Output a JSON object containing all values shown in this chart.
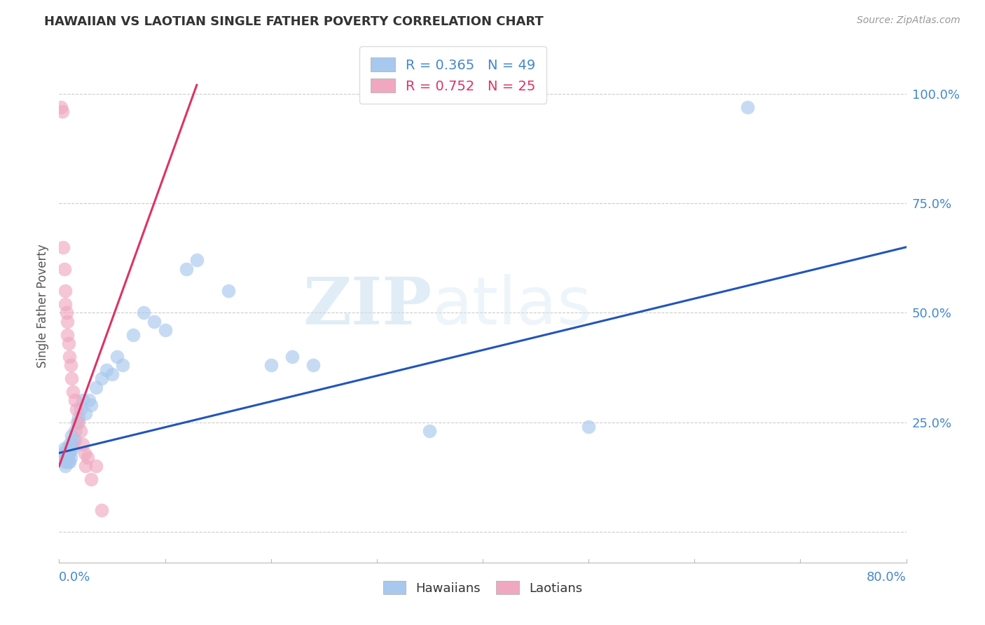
{
  "title": "HAWAIIAN VS LAOTIAN SINGLE FATHER POVERTY CORRELATION CHART",
  "source": "Source: ZipAtlas.com",
  "ylabel": "Single Father Poverty",
  "ytick_values": [
    0.0,
    0.25,
    0.5,
    0.75,
    1.0
  ],
  "ytick_labels": [
    "",
    "25.0%",
    "50.0%",
    "75.0%",
    "100.0%"
  ],
  "xlim": [
    0.0,
    0.8
  ],
  "ylim": [
    -0.07,
    1.1
  ],
  "x_axis_left_label": "0.0%",
  "x_axis_right_label": "80.0%",
  "hawaiian_R": 0.365,
  "hawaiian_N": 49,
  "laotian_R": 0.752,
  "laotian_N": 25,
  "hawaiian_color": "#a8c8ee",
  "laotian_color": "#f0a8c0",
  "hawaiian_line_color": "#2255bb",
  "laotian_line_color": "#dd3366",
  "legend_label_1": "Hawaiians",
  "legend_label_2": "Laotians",
  "watermark_zip": "ZIP",
  "watermark_atlas": "atlas",
  "hawaiian_x": [
    0.003,
    0.004,
    0.005,
    0.005,
    0.006,
    0.006,
    0.007,
    0.007,
    0.008,
    0.008,
    0.009,
    0.009,
    0.01,
    0.01,
    0.01,
    0.011,
    0.011,
    0.012,
    0.012,
    0.013,
    0.013,
    0.015,
    0.015,
    0.017,
    0.018,
    0.02,
    0.022,
    0.025,
    0.028,
    0.03,
    0.035,
    0.04,
    0.045,
    0.05,
    0.055,
    0.06,
    0.07,
    0.08,
    0.09,
    0.1,
    0.12,
    0.13,
    0.16,
    0.2,
    0.22,
    0.24,
    0.35,
    0.5,
    0.65
  ],
  "hawaiian_y": [
    0.18,
    0.17,
    0.19,
    0.16,
    0.18,
    0.15,
    0.17,
    0.16,
    0.19,
    0.17,
    0.18,
    0.16,
    0.2,
    0.18,
    0.16,
    0.19,
    0.17,
    0.2,
    0.22,
    0.21,
    0.19,
    0.23,
    0.21,
    0.25,
    0.26,
    0.28,
    0.3,
    0.27,
    0.3,
    0.29,
    0.33,
    0.35,
    0.37,
    0.36,
    0.4,
    0.38,
    0.45,
    0.5,
    0.48,
    0.46,
    0.6,
    0.62,
    0.55,
    0.38,
    0.4,
    0.38,
    0.23,
    0.24,
    0.97
  ],
  "laotian_x": [
    0.002,
    0.003,
    0.004,
    0.005,
    0.006,
    0.006,
    0.007,
    0.008,
    0.008,
    0.009,
    0.01,
    0.011,
    0.012,
    0.013,
    0.015,
    0.016,
    0.018,
    0.02,
    0.022,
    0.024,
    0.025,
    0.027,
    0.03,
    0.035,
    0.04
  ],
  "laotian_y": [
    0.97,
    0.96,
    0.65,
    0.6,
    0.55,
    0.52,
    0.5,
    0.48,
    0.45,
    0.43,
    0.4,
    0.38,
    0.35,
    0.32,
    0.3,
    0.28,
    0.25,
    0.23,
    0.2,
    0.18,
    0.15,
    0.17,
    0.12,
    0.15,
    0.05
  ],
  "blue_line_x": [
    0.0,
    0.8
  ],
  "blue_line_y": [
    0.18,
    0.65
  ],
  "pink_line_x": [
    0.0,
    0.13
  ],
  "pink_line_y": [
    0.15,
    1.02
  ]
}
